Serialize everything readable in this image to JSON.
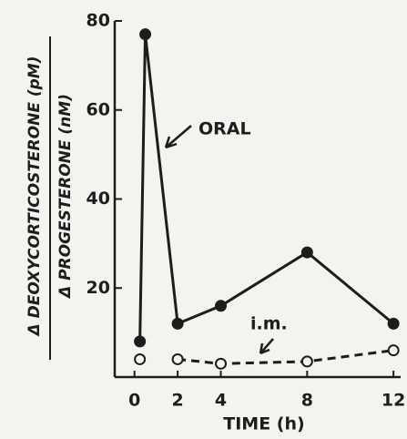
{
  "chart_data": {
    "type": "line",
    "ylabel_top": "Δ DEOXYCORTICOSTERONE (pM)",
    "ylabel_bottom": "Δ PROGESTERONE (nM)",
    "xlabel": "TIME (h)",
    "x": [
      0.25,
      0.5,
      2,
      4,
      8,
      12
    ],
    "series": [
      {
        "name": "ORAL",
        "color": "#1d1d1d",
        "marker": "filled",
        "line_style": "solid",
        "values": [
          8,
          77,
          12,
          16,
          28,
          12
        ]
      },
      {
        "name": "i.m.",
        "color": "#1d1d1d",
        "marker": "open",
        "line_style": "dashed",
        "values": [
          4,
          null,
          4,
          3,
          3.5,
          6
        ]
      }
    ],
    "xlim": [
      -1,
      12.5
    ],
    "xticks": [
      0,
      2,
      4,
      8,
      12
    ],
    "ylim": [
      0,
      80
    ],
    "yticks": [
      20,
      40,
      60,
      80
    ]
  }
}
